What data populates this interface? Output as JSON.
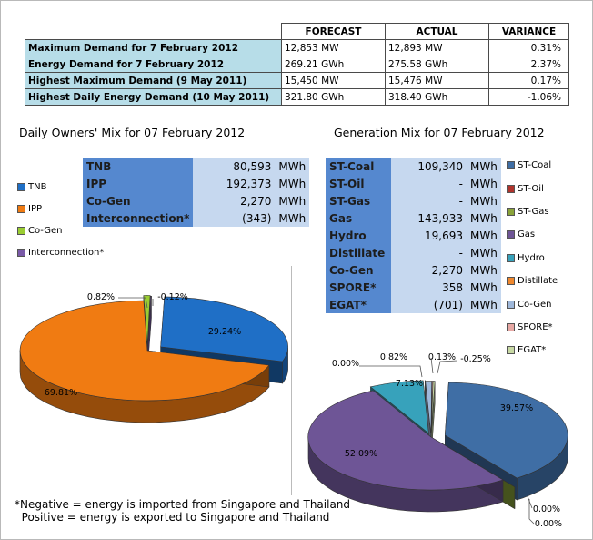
{
  "summary": {
    "headers": [
      "",
      "FORECAST",
      "ACTUAL",
      "VARIANCE"
    ],
    "rows": [
      {
        "label": "Maximum Demand for 7 February 2012",
        "forecast": "12,853  MW",
        "actual": "12,893  MW",
        "variance": "0.31%"
      },
      {
        "label": "Energy Demand for 7 February 2012",
        "forecast": "269.21  GWh",
        "actual": "275.58  GWh",
        "variance": "2.37%"
      },
      {
        "label": "Highest Maximum Demand (9 May 2011)",
        "forecast": "15,450  MW",
        "actual": "15,476  MW",
        "variance": "0.17%"
      },
      {
        "label": "Highest Daily Energy Demand (10 May 2011)",
        "forecast": "321.80  GWh",
        "actual": "318.40  GWh",
        "variance": "-1.06%"
      }
    ]
  },
  "owners": {
    "title": "Daily Owners' Mix for 07 February 2012",
    "table": [
      {
        "name": "TNB",
        "value": "80,593",
        "unit": "MWh"
      },
      {
        "name": "IPP",
        "value": "192,373",
        "unit": "MWh"
      },
      {
        "name": "Co-Gen",
        "value": "2,270",
        "unit": "MWh"
      },
      {
        "name": "Interconnection*",
        "value": "(343)",
        "unit": "MWh"
      }
    ],
    "legend": [
      {
        "name": "TNB",
        "color": "#1f6fc6"
      },
      {
        "name": "IPP",
        "color": "#f07b12"
      },
      {
        "name": "Co-Gen",
        "color": "#9acd32"
      },
      {
        "name": "Interconnection*",
        "color": "#7a5aa8"
      }
    ]
  },
  "generation": {
    "title": "Generation Mix for 07 February 2012",
    "table": [
      {
        "name": "ST-Coal",
        "value": "109,340",
        "unit": "MWh"
      },
      {
        "name": "ST-Oil",
        "value": "-",
        "unit": "MWh"
      },
      {
        "name": "ST-Gas",
        "value": "-",
        "unit": "MWh"
      },
      {
        "name": "Gas",
        "value": "143,933",
        "unit": "MWh"
      },
      {
        "name": "Hydro",
        "value": "19,693",
        "unit": "MWh"
      },
      {
        "name": "Distillate",
        "value": "-",
        "unit": "MWh"
      },
      {
        "name": "Co-Gen",
        "value": "2,270",
        "unit": "MWh"
      },
      {
        "name": "SPORE*",
        "value": "358",
        "unit": "MWh"
      },
      {
        "name": "EGAT*",
        "value": "(701)",
        "unit": "MWh"
      }
    ],
    "legend": [
      {
        "name": "ST-Coal",
        "color": "#3f6ea5"
      },
      {
        "name": "ST-Oil",
        "color": "#b0332c"
      },
      {
        "name": "ST-Gas",
        "color": "#8aa339"
      },
      {
        "name": "Gas",
        "color": "#6e5596"
      },
      {
        "name": "Hydro",
        "color": "#37a2bb"
      },
      {
        "name": "Distillate",
        "color": "#f0882e"
      },
      {
        "name": "Co-Gen",
        "color": "#9fb8da"
      },
      {
        "name": "SPORE*",
        "color": "#e7a8a4"
      },
      {
        "name": "EGAT*",
        "color": "#c8d9a4"
      }
    ]
  },
  "chart_data": [
    {
      "type": "pie",
      "title": "Daily Owners' Mix for 07 February 2012",
      "slices": [
        {
          "name": "TNB",
          "value": 29.24,
          "label": "29.24%",
          "color": "#1f6fc6",
          "explode": true
        },
        {
          "name": "IPP",
          "value": 69.81,
          "label": "69.81%",
          "color": "#f07b12",
          "explode": false
        },
        {
          "name": "Co-Gen",
          "value": 0.82,
          "label": "0.82%",
          "color": "#9acd32",
          "explode": true
        },
        {
          "name": "Interconnection*",
          "value": 0.12,
          "label": "-0.12%",
          "color": "#7a5aa8",
          "explode": true
        }
      ]
    },
    {
      "type": "pie",
      "title": "Generation Mix for 07 February 2012",
      "slices": [
        {
          "name": "ST-Coal",
          "value": 39.57,
          "label": "39.57%",
          "color": "#3f6ea5"
        },
        {
          "name": "ST-Oil",
          "value": 0.0,
          "label": "0.00%",
          "color": "#b0332c"
        },
        {
          "name": "ST-Gas",
          "value": 0.0,
          "label": "0.00%",
          "color": "#8aa339"
        },
        {
          "name": "Gas",
          "value": 52.09,
          "label": "52.09%",
          "color": "#6e5596"
        },
        {
          "name": "Hydro",
          "value": 7.13,
          "label": "7.13%",
          "color": "#37a2bb"
        },
        {
          "name": "Distillate",
          "value": 0.0,
          "label": "0.00%",
          "color": "#f0882e"
        },
        {
          "name": "Co-Gen",
          "value": 0.82,
          "label": "0.82%",
          "color": "#9fb8da"
        },
        {
          "name": "SPORE*",
          "value": 0.13,
          "label": "0.13%",
          "color": "#e7a8a4"
        },
        {
          "name": "EGAT*",
          "value": 0.25,
          "label": "-0.25%",
          "color": "#c8d9a4"
        }
      ]
    }
  ],
  "note": {
    "line1": "*Negative = energy is imported from Singapore and Thailand",
    "line2": "  Positive = energy is exported to Singapore and Thailand"
  }
}
